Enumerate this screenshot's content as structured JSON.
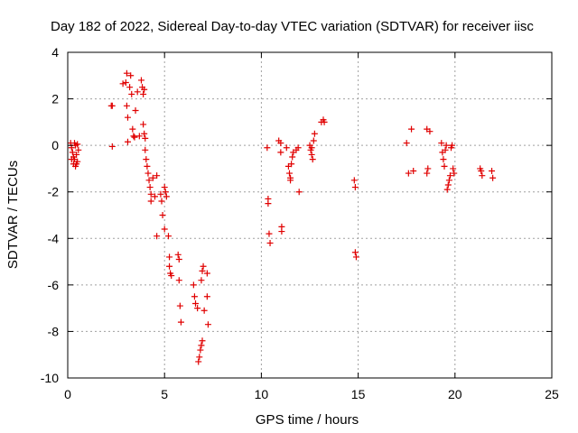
{
  "chart_data": {
    "type": "scatter",
    "title": "Day 182 of 2022, Sidereal Day-to-day VTEC variation (SDTVAR) for receiver iisc",
    "xlabel": "GPS time / hours",
    "ylabel": "SDTVAR / TECUs",
    "xlim": [
      0,
      25
    ],
    "ylim": [
      -10,
      4
    ],
    "xticks": [
      "0",
      "5",
      "10",
      "15",
      "20",
      "25"
    ],
    "yticks": [
      "-10",
      "-8",
      "-6",
      "-4",
      "-2",
      "0",
      "2",
      "4"
    ],
    "grid": true,
    "marker": "+",
    "color": "#e00000",
    "series": [
      {
        "name": "iisc",
        "points": [
          [
            0.15,
            0.1
          ],
          [
            0.2,
            -0.1
          ],
          [
            0.25,
            -0.3
          ],
          [
            0.3,
            -0.5
          ],
          [
            0.3,
            -0.8
          ],
          [
            0.35,
            -0.6
          ],
          [
            0.4,
            -0.9
          ],
          [
            0.45,
            -0.4
          ],
          [
            0.5,
            -0.7
          ],
          [
            0.55,
            -0.2
          ],
          [
            0.35,
            0.1
          ],
          [
            0.4,
            0.0
          ],
          [
            0.5,
            0.05
          ],
          [
            0.2,
            -0.6
          ],
          [
            0.45,
            -0.8
          ],
          [
            2.25,
            1.7
          ],
          [
            2.3,
            1.7
          ],
          [
            2.3,
            -0.05
          ],
          [
            2.85,
            2.65
          ],
          [
            3.0,
            2.7
          ],
          [
            3.05,
            3.1
          ],
          [
            3.05,
            1.7
          ],
          [
            3.1,
            1.2
          ],
          [
            3.1,
            0.15
          ],
          [
            3.2,
            2.5
          ],
          [
            3.25,
            3.0
          ],
          [
            3.3,
            2.2
          ],
          [
            3.35,
            0.7
          ],
          [
            3.4,
            0.4
          ],
          [
            3.45,
            0.35
          ],
          [
            3.5,
            1.5
          ],
          [
            3.6,
            2.3
          ],
          [
            3.7,
            0.4
          ],
          [
            3.8,
            2.8
          ],
          [
            3.85,
            2.5
          ],
          [
            3.9,
            2.2
          ],
          [
            3.9,
            0.9
          ],
          [
            3.95,
            0.5
          ],
          [
            4.0,
            0.3
          ],
          [
            4.0,
            -0.2
          ],
          [
            3.95,
            2.4
          ],
          [
            4.05,
            -0.6
          ],
          [
            4.1,
            -0.9
          ],
          [
            4.15,
            -1.2
          ],
          [
            4.2,
            -1.5
          ],
          [
            4.25,
            -1.8
          ],
          [
            4.3,
            -2.1
          ],
          [
            4.3,
            -2.4
          ],
          [
            4.4,
            -1.4
          ],
          [
            4.5,
            -2.2
          ],
          [
            4.6,
            -1.3
          ],
          [
            4.6,
            -3.9
          ],
          [
            4.8,
            -2.1
          ],
          [
            4.85,
            -2.4
          ],
          [
            4.9,
            -3.0
          ],
          [
            5.0,
            -3.6
          ],
          [
            5.0,
            -1.8
          ],
          [
            5.05,
            -2.0
          ],
          [
            5.1,
            -2.2
          ],
          [
            5.2,
            -3.9
          ],
          [
            5.25,
            -4.8
          ],
          [
            5.25,
            -5.2
          ],
          [
            5.3,
            -5.5
          ],
          [
            5.35,
            -5.6
          ],
          [
            5.7,
            -4.7
          ],
          [
            5.75,
            -4.9
          ],
          [
            5.75,
            -5.8
          ],
          [
            5.8,
            -6.9
          ],
          [
            5.85,
            -7.6
          ],
          [
            6.5,
            -6.0
          ],
          [
            6.55,
            -6.5
          ],
          [
            6.6,
            -6.8
          ],
          [
            6.7,
            -7.0
          ],
          [
            6.75,
            -9.3
          ],
          [
            6.8,
            -9.1
          ],
          [
            6.85,
            -8.8
          ],
          [
            6.9,
            -8.6
          ],
          [
            6.95,
            -8.4
          ],
          [
            6.9,
            -5.8
          ],
          [
            6.95,
            -5.4
          ],
          [
            7.0,
            -5.2
          ],
          [
            7.05,
            -7.1
          ],
          [
            7.2,
            -6.5
          ],
          [
            7.2,
            -5.5
          ],
          [
            7.25,
            -7.7
          ],
          [
            10.3,
            -0.1
          ],
          [
            10.35,
            -2.3
          ],
          [
            10.35,
            -2.5
          ],
          [
            10.4,
            -3.8
          ],
          [
            10.45,
            -4.2
          ],
          [
            10.9,
            0.2
          ],
          [
            11.0,
            0.1
          ],
          [
            11.0,
            -0.3
          ],
          [
            11.05,
            -3.5
          ],
          [
            11.05,
            -3.7
          ],
          [
            11.3,
            -0.1
          ],
          [
            11.4,
            -0.9
          ],
          [
            11.45,
            -1.2
          ],
          [
            11.5,
            -1.4
          ],
          [
            11.5,
            -1.5
          ],
          [
            11.55,
            -0.8
          ],
          [
            11.6,
            -0.5
          ],
          [
            11.65,
            -0.3
          ],
          [
            11.9,
            -0.1
          ],
          [
            11.95,
            -2.0
          ],
          [
            11.8,
            -0.2
          ],
          [
            12.5,
            0.0
          ],
          [
            12.55,
            -0.2
          ],
          [
            12.6,
            -0.4
          ],
          [
            12.65,
            -0.6
          ],
          [
            12.7,
            0.2
          ],
          [
            12.75,
            0.5
          ],
          [
            12.6,
            -0.1
          ],
          [
            13.1,
            1.0
          ],
          [
            13.2,
            1.1
          ],
          [
            13.25,
            1.0
          ],
          [
            14.8,
            -1.5
          ],
          [
            14.85,
            -1.8
          ],
          [
            14.85,
            -4.6
          ],
          [
            14.9,
            -4.8
          ],
          [
            17.5,
            0.1
          ],
          [
            17.6,
            -1.2
          ],
          [
            17.75,
            0.7
          ],
          [
            17.85,
            -1.1
          ],
          [
            18.55,
            0.7
          ],
          [
            18.7,
            0.6
          ],
          [
            18.6,
            -1.0
          ],
          [
            18.55,
            -1.2
          ],
          [
            19.3,
            0.1
          ],
          [
            19.35,
            -0.3
          ],
          [
            19.4,
            -0.6
          ],
          [
            19.45,
            -0.9
          ],
          [
            19.5,
            -0.2
          ],
          [
            19.55,
            0.0
          ],
          [
            19.6,
            -1.9
          ],
          [
            19.65,
            -1.7
          ],
          [
            19.7,
            -1.5
          ],
          [
            19.75,
            -1.3
          ],
          [
            19.8,
            -0.1
          ],
          [
            19.85,
            0.0
          ],
          [
            19.9,
            -1.0
          ],
          [
            19.95,
            -1.2
          ],
          [
            21.3,
            -1.0
          ],
          [
            21.35,
            -1.1
          ],
          [
            21.4,
            -1.3
          ],
          [
            21.9,
            -1.1
          ],
          [
            21.95,
            -1.4
          ]
        ]
      }
    ]
  }
}
